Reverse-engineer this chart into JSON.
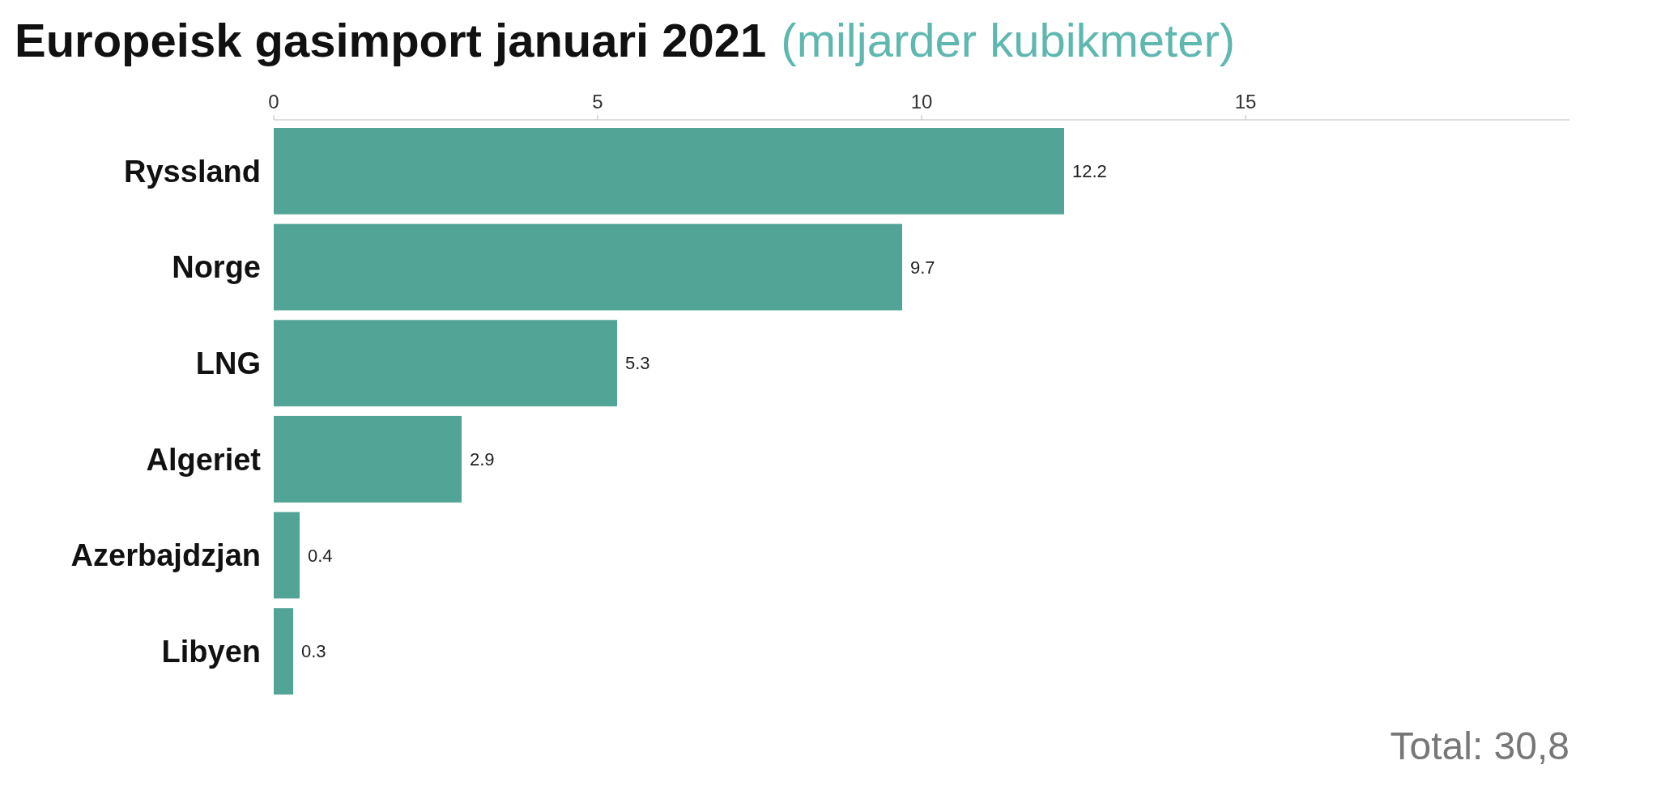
{
  "chart_data": {
    "type": "bar",
    "orientation": "horizontal",
    "title": "Europeisk gasimport januari 2021",
    "subtitle": "(miljarder kubikmeter)",
    "categories": [
      "Ryssland",
      "Norge",
      "LNG",
      "Algeriet",
      "Azerbajdzjan",
      "Libyen"
    ],
    "values": [
      12.2,
      9.7,
      5.3,
      2.9,
      0.4,
      0.3
    ],
    "color": "#52a497",
    "xlim": [
      0,
      20
    ],
    "xticks": [
      0,
      5,
      10,
      15
    ],
    "data_labels": true,
    "annotations": [
      "Total: 30,8"
    ]
  }
}
